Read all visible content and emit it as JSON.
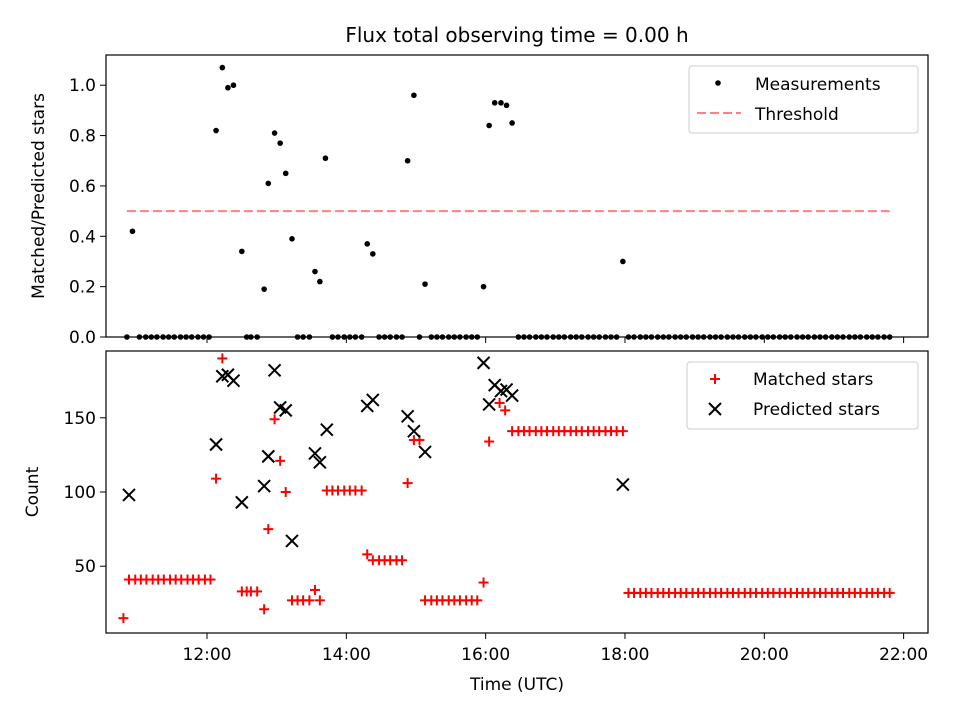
{
  "colors": {
    "measurement": "#000000",
    "threshold": "#ff8080",
    "matched": "#ff0000",
    "predicted": "#000000"
  },
  "chart_data": [
    {
      "type": "scatter",
      "title": "Flux total observing time = 0.00 h",
      "xlabel": "",
      "ylabel": "Matched/Predicted stars",
      "xlim": [
        10.55,
        22.35
      ],
      "ylim": [
        0,
        1.12
      ],
      "y_ticks": [
        0,
        0.2,
        0.4,
        0.6,
        0.8,
        1.0
      ],
      "y_tick_labels": [
        "0.0",
        "0.2",
        "0.4",
        "0.6",
        "0.8",
        "1.0"
      ],
      "legend_position": "top-right",
      "threshold": {
        "name": "Threshold",
        "value": 0.5,
        "x_range": [
          10.85,
          21.8
        ]
      },
      "series": [
        {
          "name": "Measurements",
          "x": [
            10.85,
            10.93,
            11.03,
            11.12,
            11.2,
            11.28,
            11.37,
            11.45,
            11.53,
            11.62,
            11.7,
            11.78,
            11.87,
            11.95,
            12.03,
            12.13,
            12.22,
            12.3,
            12.38,
            12.5,
            12.57,
            12.63,
            12.72,
            12.82,
            12.88,
            12.97,
            13.05,
            13.13,
            13.22,
            13.3,
            13.38,
            13.47,
            13.55,
            13.62,
            13.7,
            13.8,
            13.88,
            13.97,
            14.05,
            14.13,
            14.22,
            14.3,
            14.38,
            14.47,
            14.55,
            14.63,
            14.72,
            14.8,
            14.88,
            14.97,
            15.05,
            15.13,
            15.22,
            15.3,
            15.38,
            15.47,
            15.55,
            15.63,
            15.72,
            15.8,
            15.88,
            15.97,
            16.05,
            16.13,
            16.22,
            16.3,
            16.38,
            16.47,
            16.55,
            16.63,
            16.72,
            16.8,
            16.88,
            16.97,
            17.05,
            17.13,
            17.22,
            17.3,
            17.38,
            17.47,
            17.55,
            17.63,
            17.72,
            17.8,
            17.88,
            17.97,
            18.05,
            18.13,
            18.22,
            18.3,
            18.38,
            18.47,
            18.55,
            18.63,
            18.72,
            18.8,
            18.88,
            18.97,
            19.05,
            19.13,
            19.22,
            19.3,
            19.38,
            19.47,
            19.55,
            19.63,
            19.72,
            19.8,
            19.88,
            19.97,
            20.05,
            20.13,
            20.22,
            20.3,
            20.38,
            20.47,
            20.55,
            20.63,
            20.72,
            20.8,
            20.88,
            20.97,
            21.05,
            21.13,
            21.22,
            21.3,
            21.38,
            21.47,
            21.55,
            21.63,
            21.72,
            21.8
          ],
          "y": [
            0,
            0.42,
            0,
            0,
            0,
            0,
            0,
            0,
            0,
            0,
            0,
            0,
            0,
            0,
            0,
            0.82,
            1.07,
            0.99,
            1.0,
            0.34,
            0,
            0,
            0,
            0.19,
            0.61,
            0.81,
            0.77,
            0.65,
            0.39,
            0,
            0,
            0,
            0.26,
            0.22,
            0.71,
            0,
            0,
            0,
            0,
            0,
            0,
            0.37,
            0.33,
            0,
            0,
            0,
            0,
            0,
            0.7,
            0.96,
            0,
            0.21,
            0,
            0,
            0,
            0,
            0,
            0,
            0,
            0,
            0,
            0.2,
            0.84,
            0.93,
            0.93,
            0.92,
            0.85,
            0,
            0,
            0,
            0,
            0,
            0,
            0,
            0,
            0,
            0,
            0,
            0,
            0,
            0,
            0,
            0,
            0,
            0,
            0.3,
            0,
            0,
            0,
            0,
            0,
            0,
            0,
            0,
            0,
            0,
            0,
            0,
            0,
            0,
            0,
            0,
            0,
            0,
            0,
            0,
            0,
            0,
            0,
            0,
            0,
            0,
            0,
            0,
            0,
            0,
            0,
            0,
            0,
            0,
            0,
            0,
            0,
            0,
            0,
            0,
            0,
            0,
            0,
            0,
            0,
            0
          ]
        }
      ]
    },
    {
      "type": "scatter",
      "title": "",
      "xlabel": "Time (UTC)",
      "ylabel": "Count",
      "xlim": [
        10.55,
        22.35
      ],
      "ylim": [
        5,
        195
      ],
      "x_ticks": [
        12,
        14,
        16,
        18,
        20,
        22
      ],
      "x_tick_labels": [
        "12:00",
        "14:00",
        "16:00",
        "18:00",
        "20:00",
        "22:00"
      ],
      "y_ticks": [
        50,
        100,
        150
      ],
      "y_tick_labels": [
        "50",
        "100",
        "150"
      ],
      "legend_position": "top-right",
      "series": [
        {
          "name": "Matched stars",
          "x": [
            10.8,
            10.88,
            10.97,
            11.05,
            11.13,
            11.22,
            11.3,
            11.38,
            11.47,
            11.55,
            11.63,
            11.72,
            11.8,
            11.88,
            11.97,
            12.05,
            12.13,
            12.22,
            12.5,
            12.57,
            12.63,
            12.72,
            12.82,
            12.88,
            12.97,
            13.05,
            13.13,
            13.22,
            13.3,
            13.38,
            13.47,
            13.55,
            13.62,
            13.72,
            13.8,
            13.88,
            13.97,
            14.05,
            14.13,
            14.22,
            14.3,
            14.38,
            14.47,
            14.55,
            14.63,
            14.72,
            14.8,
            14.88,
            14.97,
            15.05,
            15.13,
            15.22,
            15.3,
            15.38,
            15.47,
            15.55,
            15.63,
            15.72,
            15.8,
            15.88,
            15.97,
            16.05,
            16.2,
            16.28,
            16.38,
            16.47,
            16.55,
            16.63,
            16.72,
            16.8,
            16.88,
            16.97,
            17.05,
            17.13,
            17.22,
            17.3,
            17.38,
            17.47,
            17.55,
            17.63,
            17.72,
            17.8,
            17.88,
            17.97,
            18.05,
            18.13,
            18.22,
            18.3,
            18.38,
            18.47,
            18.55,
            18.63,
            18.72,
            18.8,
            18.88,
            18.97,
            19.05,
            19.13,
            19.22,
            19.3,
            19.38,
            19.47,
            19.55,
            19.63,
            19.72,
            19.8,
            19.88,
            19.97,
            20.05,
            20.13,
            20.22,
            20.3,
            20.38,
            20.47,
            20.55,
            20.63,
            20.72,
            20.8,
            20.88,
            20.97,
            21.05,
            21.13,
            21.22,
            21.3,
            21.38,
            21.47,
            21.55,
            21.63,
            21.72,
            21.8
          ],
          "y": [
            15,
            41,
            41,
            41,
            41,
            41,
            41,
            41,
            41,
            41,
            41,
            41,
            41,
            41,
            41,
            41,
            109,
            190,
            33,
            33,
            33,
            33,
            21,
            75,
            149,
            121,
            100,
            27,
            27,
            27,
            27,
            34,
            27,
            101,
            101,
            101,
            101,
            101,
            101,
            101,
            58,
            54,
            54,
            54,
            54,
            54,
            54,
            106,
            135,
            135,
            27,
            27,
            27,
            27,
            27,
            27,
            27,
            27,
            27,
            27,
            39,
            134,
            160,
            155,
            141,
            141,
            141,
            141,
            141,
            141,
            141,
            141,
            141,
            141,
            141,
            141,
            141,
            141,
            141,
            141,
            141,
            141,
            141,
            141,
            32,
            32,
            32,
            32,
            32,
            32,
            32,
            32,
            32,
            32,
            32,
            32,
            32,
            32,
            32,
            32,
            32,
            32,
            32,
            32,
            32,
            32,
            32,
            32,
            32,
            32,
            32,
            32,
            32,
            32,
            32,
            32,
            32,
            32,
            32,
            32,
            32,
            32,
            32,
            32,
            32,
            32,
            32,
            32,
            32,
            32
          ]
        },
        {
          "name": "Predicted stars",
          "x": [
            10.88,
            12.13,
            12.22,
            12.3,
            12.38,
            12.5,
            12.82,
            12.88,
            12.97,
            13.05,
            13.13,
            13.22,
            13.55,
            13.62,
            13.72,
            14.3,
            14.38,
            14.88,
            14.97,
            15.13,
            15.97,
            16.05,
            16.13,
            16.22,
            16.3,
            16.38,
            17.97
          ],
          "y": [
            98,
            132,
            178,
            179,
            175,
            93,
            104,
            124,
            182,
            157,
            155,
            67,
            126,
            120,
            142,
            158,
            162,
            151,
            141,
            127,
            187,
            159,
            172,
            168,
            169,
            165,
            105
          ]
        }
      ]
    }
  ]
}
